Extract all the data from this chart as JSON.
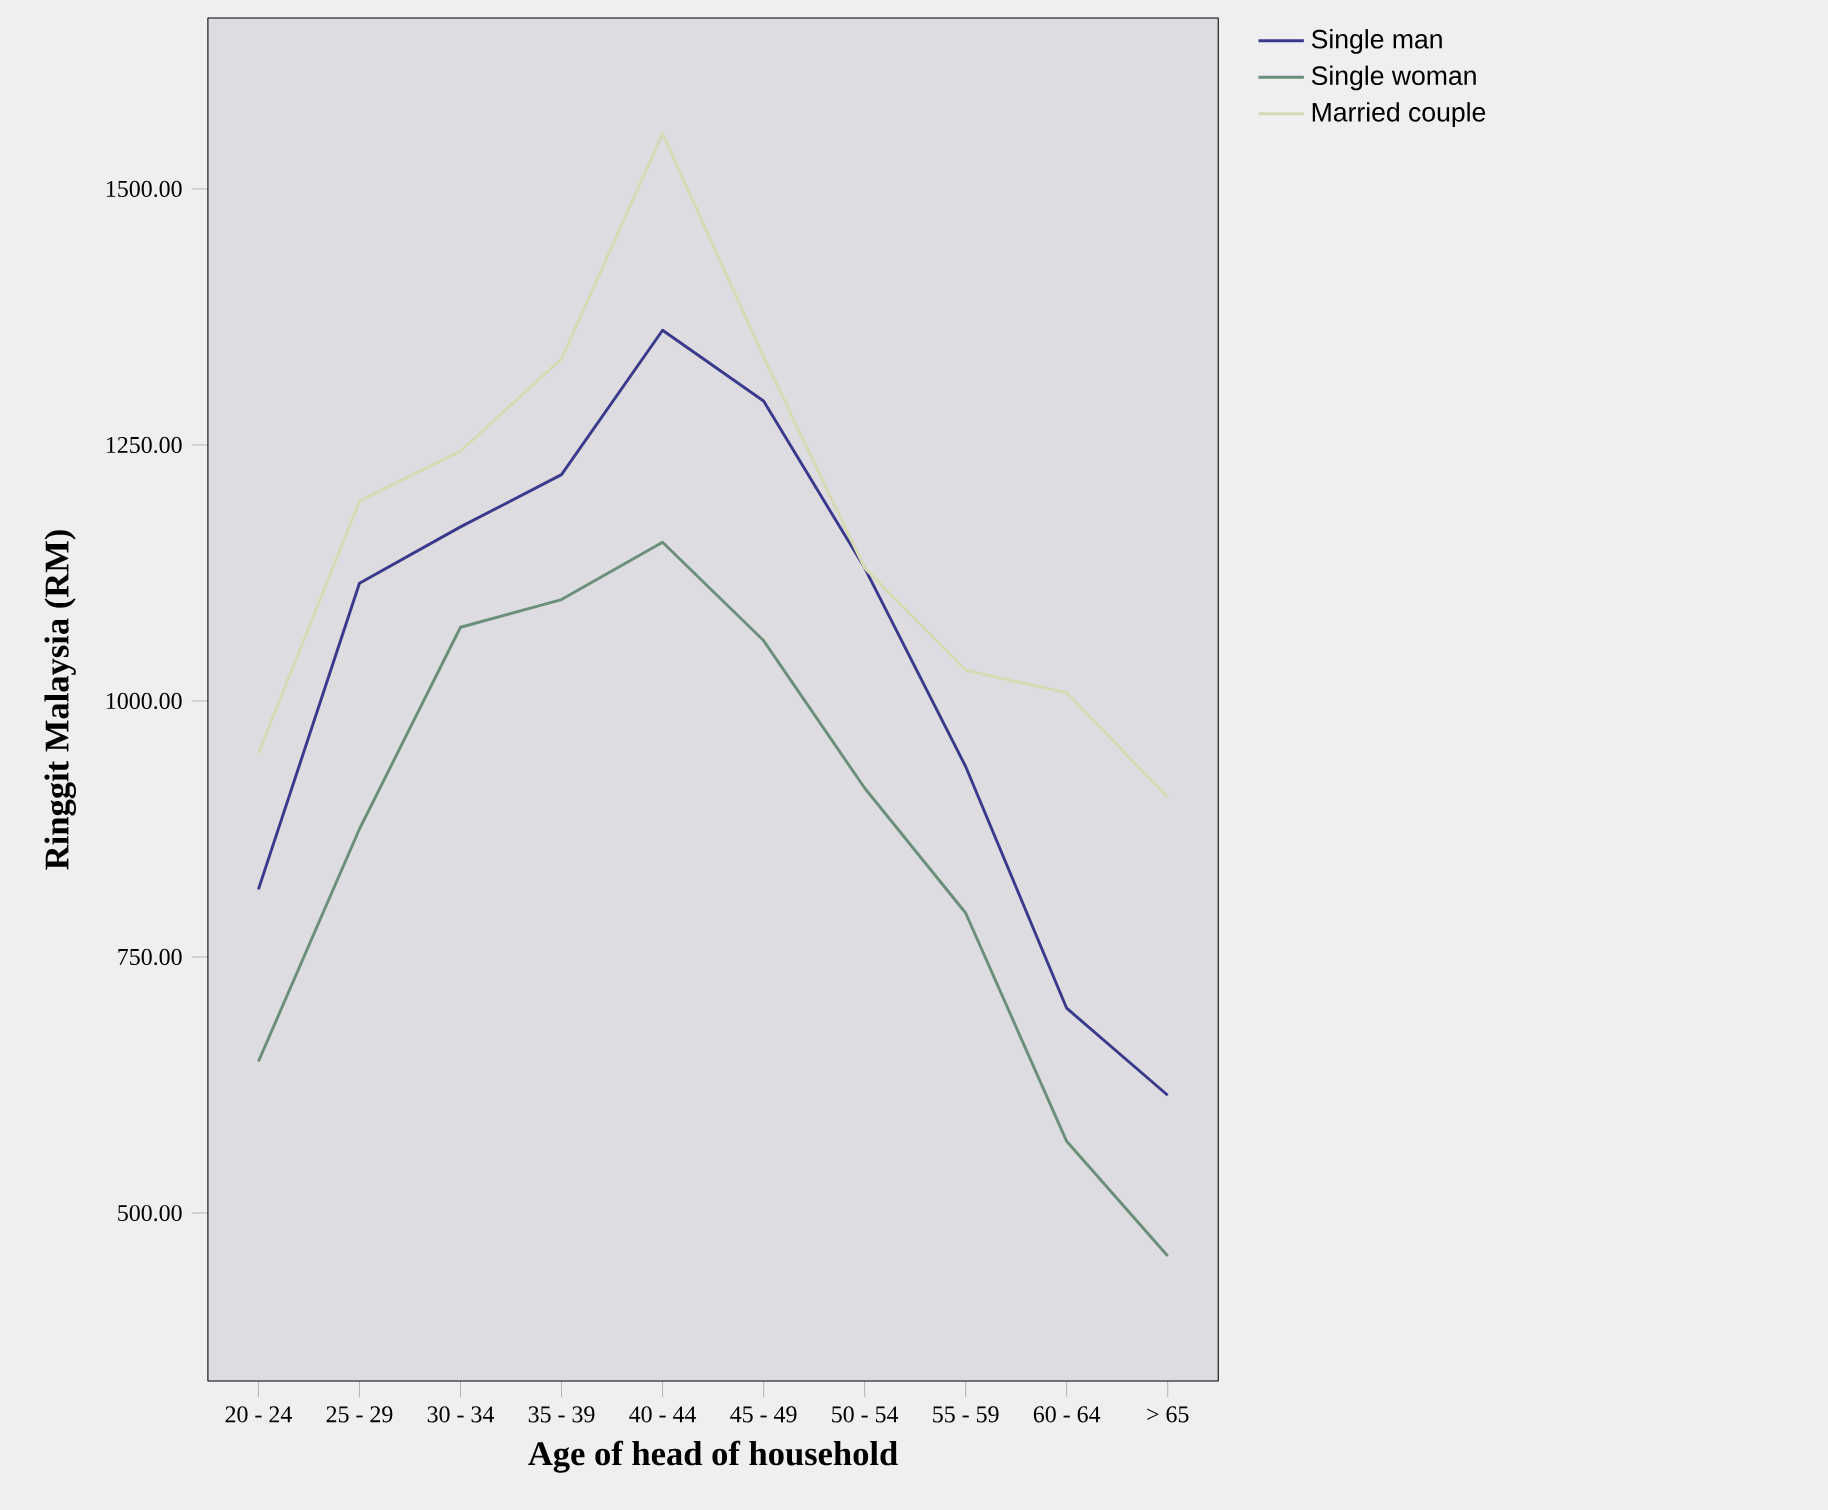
{
  "chart_data": {
    "type": "line",
    "xlabel": "Age of head of household",
    "ylabel": "Ringgit Malaysia (RM)",
    "categories": [
      "20 - 24",
      "25 - 29",
      "30 - 34",
      "35 - 39",
      "40 - 44",
      "45 - 49",
      "50 - 54",
      "55 - 59",
      "60 - 64",
      "> 65"
    ],
    "series": [
      {
        "name": "Single man",
        "color": "#3a3a8c",
        "values": [
          816,
          1115,
          1170,
          1221,
          1362,
          1293,
          1130,
          936,
          700,
          615
        ]
      },
      {
        "name": "Single woman",
        "color": "#6b8f7a",
        "values": [
          648,
          875,
          1072,
          1099,
          1155,
          1059,
          915,
          793,
          570,
          458
        ]
      },
      {
        "name": "Married couple",
        "color": "#d6dab4",
        "values": [
          949,
          1195,
          1244,
          1334,
          1554,
          1336,
          1130,
          1030,
          1008,
          906
        ]
      }
    ],
    "ylim": [
      336,
      1667
    ],
    "yticks": [
      {
        "value": 500,
        "label": "500.00"
      },
      {
        "value": 750,
        "label": "750.00"
      },
      {
        "value": 1000,
        "label": "1000.00"
      },
      {
        "value": 1250,
        "label": "1250.00"
      },
      {
        "value": 1500,
        "label": "1500.00"
      }
    ],
    "grid": false,
    "legend": "top right",
    "marker": "none",
    "line_style": "solid"
  }
}
